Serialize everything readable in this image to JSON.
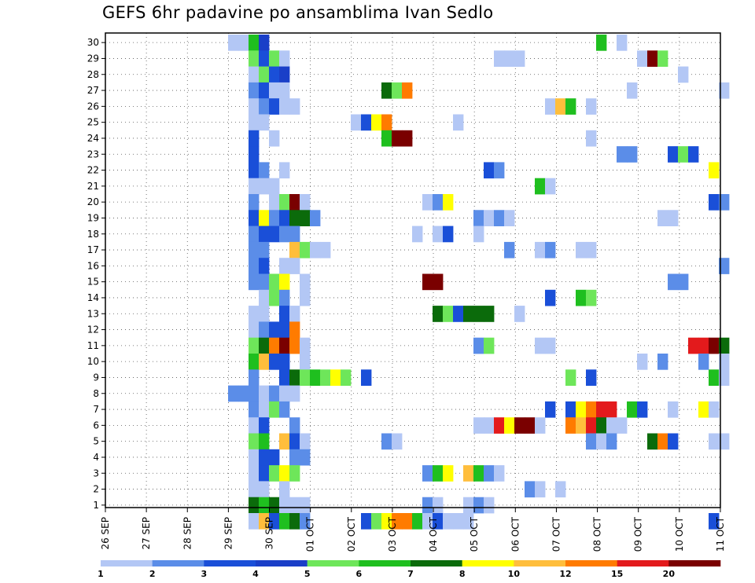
{
  "chart_data": {
    "type": "heatmap",
    "title": "GEFS 6hr padavine po ansamblima Ivan Sedlo",
    "xlabel": "",
    "ylabel": "",
    "y_ticks": [
      "1",
      "2",
      "3",
      "4",
      "5",
      "6",
      "7",
      "8",
      "9",
      "10",
      "11",
      "12",
      "13",
      "14",
      "15",
      "16",
      "17",
      "18",
      "19",
      "20",
      "21",
      "22",
      "23",
      "24",
      "25",
      "26",
      "27",
      "28",
      "29",
      "30"
    ],
    "x_ticks": [
      "26 SEP",
      "27 SEP",
      "28 SEP",
      "29 SEP",
      "30 SEP",
      "01 OCT",
      "02 OCT",
      "03 OCT",
      "04 OCT",
      "05 OCT",
      "06 OCT",
      "07 OCT",
      "08 OCT",
      "09 OCT",
      "10 OCT",
      "11 OCT"
    ],
    "x_step_unit": "6 hours",
    "colorbar": {
      "levels": [
        "1",
        "2",
        "3",
        "4",
        "5",
        "6",
        "7",
        "8",
        "10",
        "12",
        "15",
        "20"
      ],
      "colors": [
        "#b3c7f5",
        "#5b8de8",
        "#1a4fd8",
        "#1a3fc8",
        "#6ee65a",
        "#1fbf1f",
        "#0b6b0b",
        "#ffff00",
        "#ffbe3c",
        "#ff7b00",
        "#e31a1c",
        "#7a0000"
      ]
    },
    "cells": [
      {
        "m": 30,
        "c": [
          [
            12,
            0
          ],
          [
            13,
            0
          ],
          [
            14,
            5
          ],
          [
            15,
            3
          ],
          [
            48,
            5
          ],
          [
            50,
            0
          ]
        ]
      },
      {
        "m": 29,
        "c": [
          [
            14,
            4
          ],
          [
            15,
            2
          ],
          [
            16,
            4
          ],
          [
            17,
            0
          ],
          [
            38,
            0
          ],
          [
            39,
            0
          ],
          [
            40,
            0
          ],
          [
            52,
            0
          ],
          [
            53,
            11
          ],
          [
            54,
            4
          ]
        ]
      },
      {
        "m": 28,
        "c": [
          [
            14,
            0
          ],
          [
            15,
            4
          ],
          [
            16,
            2
          ],
          [
            17,
            3
          ],
          [
            56,
            0
          ]
        ]
      },
      {
        "m": 27,
        "c": [
          [
            14,
            1
          ],
          [
            15,
            2
          ],
          [
            16,
            0
          ],
          [
            17,
            0
          ],
          [
            27,
            6
          ],
          [
            28,
            4
          ],
          [
            29,
            9
          ],
          [
            51,
            0
          ],
          [
            60,
            0
          ]
        ]
      },
      {
        "m": 26,
        "c": [
          [
            14,
            0
          ],
          [
            15,
            1
          ],
          [
            16,
            2
          ],
          [
            17,
            0
          ],
          [
            18,
            0
          ],
          [
            43,
            0
          ],
          [
            44,
            8
          ],
          [
            45,
            5
          ],
          [
            47,
            0
          ]
        ]
      },
      {
        "m": 25,
        "c": [
          [
            14,
            0
          ],
          [
            15,
            0
          ],
          [
            24,
            0
          ],
          [
            25,
            2
          ],
          [
            26,
            7
          ],
          [
            27,
            9
          ],
          [
            34,
            0
          ]
        ]
      },
      {
        "m": 24,
        "c": [
          [
            14,
            2
          ],
          [
            16,
            0
          ],
          [
            27,
            5
          ],
          [
            28,
            11
          ],
          [
            29,
            11
          ],
          [
            47,
            0
          ]
        ]
      },
      {
        "m": 23,
        "c": [
          [
            14,
            2
          ],
          [
            50,
            1
          ],
          [
            51,
            1
          ],
          [
            55,
            2
          ],
          [
            56,
            4
          ],
          [
            57,
            2
          ]
        ]
      },
      {
        "m": 22,
        "c": [
          [
            14,
            2
          ],
          [
            15,
            1
          ],
          [
            17,
            0
          ],
          [
            37,
            2
          ],
          [
            38,
            1
          ],
          [
            59,
            7
          ]
        ]
      },
      {
        "m": 21,
        "c": [
          [
            14,
            0
          ],
          [
            15,
            0
          ],
          [
            16,
            0
          ],
          [
            42,
            5
          ],
          [
            43,
            0
          ]
        ]
      },
      {
        "m": 20,
        "c": [
          [
            14,
            1
          ],
          [
            16,
            0
          ],
          [
            17,
            4
          ],
          [
            18,
            11
          ],
          [
            19,
            0
          ],
          [
            31,
            0
          ],
          [
            32,
            1
          ],
          [
            33,
            7
          ],
          [
            59,
            2
          ],
          [
            60,
            1
          ]
        ]
      },
      {
        "m": 19,
        "c": [
          [
            14,
            2
          ],
          [
            15,
            7
          ],
          [
            16,
            1
          ],
          [
            17,
            2
          ],
          [
            18,
            6
          ],
          [
            19,
            6
          ],
          [
            20,
            1
          ],
          [
            36,
            1
          ],
          [
            37,
            0
          ],
          [
            38,
            1
          ],
          [
            39,
            0
          ],
          [
            54,
            0
          ],
          [
            55,
            0
          ]
        ]
      },
      {
        "m": 18,
        "c": [
          [
            14,
            1
          ],
          [
            15,
            2
          ],
          [
            16,
            2
          ],
          [
            17,
            1
          ],
          [
            18,
            1
          ],
          [
            30,
            0
          ],
          [
            32,
            0
          ],
          [
            33,
            2
          ],
          [
            36,
            0
          ]
        ]
      },
      {
        "m": 17,
        "c": [
          [
            14,
            1
          ],
          [
            15,
            1
          ],
          [
            18,
            8
          ],
          [
            19,
            4
          ],
          [
            20,
            0
          ],
          [
            21,
            0
          ],
          [
            39,
            1
          ],
          [
            42,
            0
          ],
          [
            43,
            1
          ],
          [
            46,
            0
          ],
          [
            47,
            0
          ]
        ]
      },
      {
        "m": 16,
        "c": [
          [
            14,
            1
          ],
          [
            15,
            2
          ],
          [
            17,
            0
          ],
          [
            18,
            0
          ],
          [
            60,
            1
          ]
        ]
      },
      {
        "m": 15,
        "c": [
          [
            14,
            1
          ],
          [
            15,
            1
          ],
          [
            16,
            4
          ],
          [
            17,
            7
          ],
          [
            19,
            0
          ],
          [
            31,
            11
          ],
          [
            32,
            11
          ],
          [
            55,
            1
          ],
          [
            56,
            1
          ]
        ]
      },
      {
        "m": 14,
        "c": [
          [
            15,
            0
          ],
          [
            16,
            4
          ],
          [
            17,
            1
          ],
          [
            19,
            0
          ],
          [
            43,
            2
          ],
          [
            46,
            5
          ],
          [
            47,
            4
          ]
        ]
      },
      {
        "m": 13,
        "c": [
          [
            14,
            0
          ],
          [
            15,
            0
          ],
          [
            17,
            2
          ],
          [
            18,
            0
          ],
          [
            32,
            6
          ],
          [
            33,
            4
          ],
          [
            34,
            2
          ],
          [
            35,
            6
          ],
          [
            36,
            6
          ],
          [
            37,
            6
          ],
          [
            40,
            0
          ]
        ]
      },
      {
        "m": 12,
        "c": [
          [
            14,
            0
          ],
          [
            15,
            1
          ],
          [
            16,
            2
          ],
          [
            17,
            2
          ],
          [
            18,
            9
          ]
        ]
      },
      {
        "m": 11,
        "c": [
          [
            14,
            4
          ],
          [
            15,
            6
          ],
          [
            16,
            9
          ],
          [
            17,
            11
          ],
          [
            18,
            9
          ],
          [
            19,
            0
          ],
          [
            36,
            1
          ],
          [
            37,
            4
          ],
          [
            42,
            0
          ],
          [
            43,
            0
          ],
          [
            57,
            10
          ],
          [
            58,
            10
          ],
          [
            59,
            11
          ],
          [
            60,
            6
          ]
        ]
      },
      {
        "m": 10,
        "c": [
          [
            14,
            5
          ],
          [
            15,
            8
          ],
          [
            16,
            2
          ],
          [
            17,
            2
          ],
          [
            19,
            0
          ],
          [
            52,
            0
          ],
          [
            54,
            1
          ],
          [
            58,
            1
          ],
          [
            60,
            0
          ]
        ]
      },
      {
        "m": 9,
        "c": [
          [
            14,
            1
          ],
          [
            17,
            2
          ],
          [
            18,
            6
          ],
          [
            19,
            4
          ],
          [
            20,
            5
          ],
          [
            21,
            4
          ],
          [
            22,
            7
          ],
          [
            23,
            4
          ],
          [
            25,
            2
          ],
          [
            45,
            4
          ],
          [
            47,
            2
          ],
          [
            59,
            5
          ],
          [
            60,
            0
          ]
        ]
      },
      {
        "m": 8,
        "c": [
          [
            12,
            1
          ],
          [
            13,
            1
          ],
          [
            14,
            1
          ],
          [
            15,
            0
          ],
          [
            16,
            1
          ],
          [
            17,
            0
          ],
          [
            18,
            0
          ]
        ]
      },
      {
        "m": 7,
        "c": [
          [
            14,
            1
          ],
          [
            15,
            0
          ],
          [
            16,
            4
          ],
          [
            17,
            1
          ],
          [
            43,
            2
          ],
          [
            45,
            2
          ],
          [
            46,
            7
          ],
          [
            47,
            9
          ],
          [
            48,
            10
          ],
          [
            49,
            10
          ],
          [
            51,
            5
          ],
          [
            52,
            2
          ],
          [
            55,
            0
          ],
          [
            58,
            7
          ],
          [
            59,
            0
          ]
        ]
      },
      {
        "m": 6,
        "c": [
          [
            14,
            0
          ],
          [
            15,
            2
          ],
          [
            18,
            1
          ],
          [
            36,
            0
          ],
          [
            37,
            0
          ],
          [
            38,
            10
          ],
          [
            39,
            7
          ],
          [
            40,
            11
          ],
          [
            41,
            11
          ],
          [
            42,
            0
          ],
          [
            45,
            9
          ],
          [
            46,
            8
          ],
          [
            47,
            10
          ],
          [
            48,
            6
          ],
          [
            49,
            0
          ],
          [
            50,
            0
          ]
        ]
      },
      {
        "m": 5,
        "c": [
          [
            14,
            4
          ],
          [
            15,
            5
          ],
          [
            17,
            8
          ],
          [
            18,
            2
          ],
          [
            19,
            0
          ],
          [
            27,
            1
          ],
          [
            28,
            0
          ],
          [
            47,
            1
          ],
          [
            48,
            0
          ],
          [
            49,
            1
          ],
          [
            53,
            6
          ],
          [
            54,
            9
          ],
          [
            55,
            2
          ],
          [
            59,
            0
          ],
          [
            60,
            0
          ]
        ]
      },
      {
        "m": 4,
        "c": [
          [
            14,
            0
          ],
          [
            15,
            2
          ],
          [
            16,
            2
          ],
          [
            18,
            1
          ],
          [
            19,
            1
          ]
        ]
      },
      {
        "m": 3,
        "c": [
          [
            14,
            0
          ],
          [
            15,
            2
          ],
          [
            16,
            4
          ],
          [
            17,
            7
          ],
          [
            18,
            4
          ],
          [
            31,
            1
          ],
          [
            32,
            5
          ],
          [
            33,
            7
          ],
          [
            35,
            8
          ],
          [
            36,
            5
          ],
          [
            37,
            1
          ],
          [
            38,
            0
          ]
        ]
      },
      {
        "m": 2,
        "c": [
          [
            14,
            0
          ],
          [
            15,
            0
          ],
          [
            17,
            0
          ],
          [
            41,
            1
          ],
          [
            42,
            0
          ],
          [
            44,
            0
          ]
        ]
      },
      {
        "m": 1,
        "c": [
          [
            14,
            6
          ],
          [
            15,
            5
          ],
          [
            16,
            6
          ],
          [
            17,
            0
          ],
          [
            18,
            0
          ],
          [
            19,
            0
          ],
          [
            31,
            1
          ],
          [
            32,
            0
          ],
          [
            35,
            0
          ],
          [
            36,
            1
          ],
          [
            37,
            0
          ]
        ]
      },
      {
        "m": 0,
        "c": [
          [
            14,
            0
          ],
          [
            15,
            8
          ],
          [
            16,
            2
          ],
          [
            17,
            5
          ],
          [
            18,
            6
          ],
          [
            19,
            1
          ],
          [
            25,
            2
          ],
          [
            26,
            4
          ],
          [
            27,
            7
          ],
          [
            28,
            9
          ],
          [
            29,
            9
          ],
          [
            30,
            5
          ],
          [
            31,
            0
          ],
          [
            32,
            2
          ],
          [
            33,
            0
          ],
          [
            34,
            0
          ],
          [
            35,
            0
          ],
          [
            59,
            2
          ]
        ]
      }
    ]
  }
}
